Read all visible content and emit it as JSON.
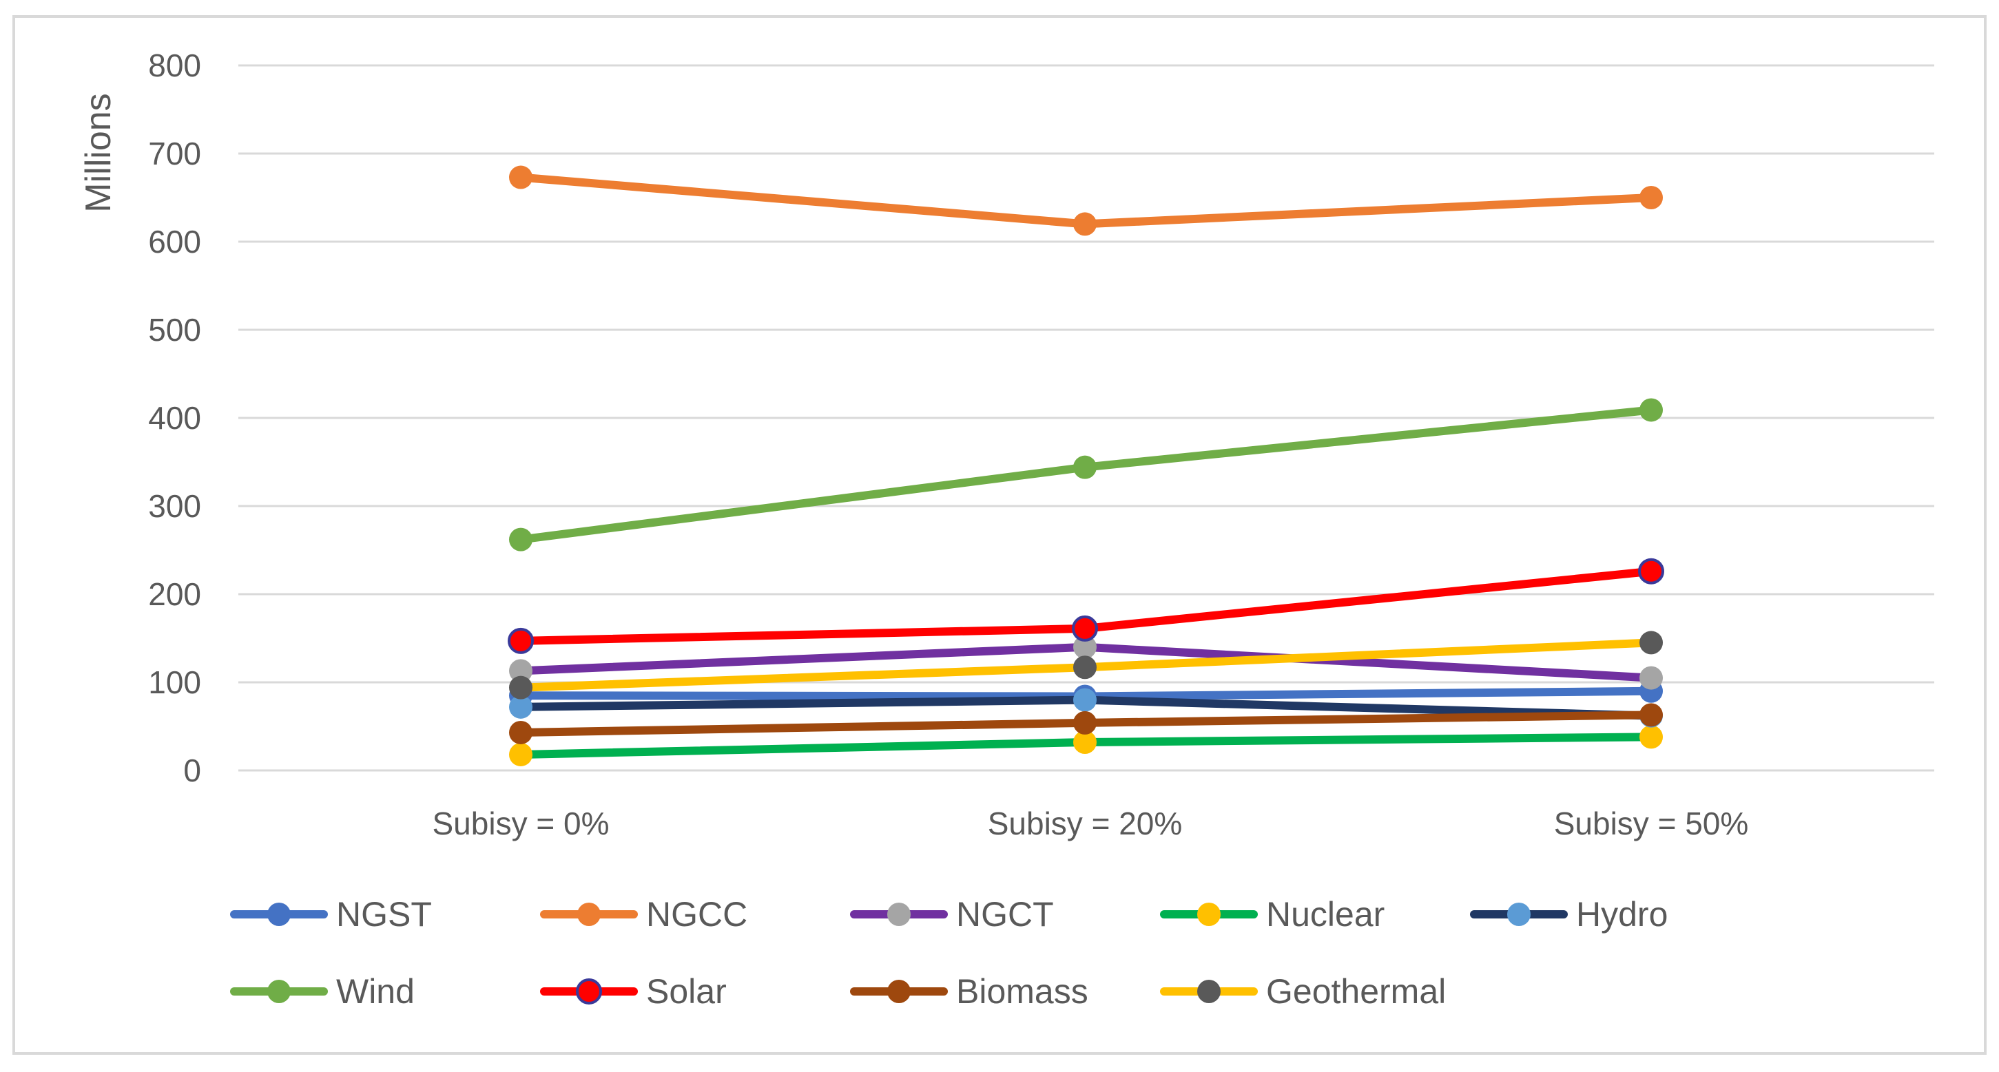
{
  "chart_data": {
    "type": "line",
    "title": "",
    "xlabel": "",
    "ylabel": "Millions",
    "ylim": [
      0,
      800
    ],
    "yticks": [
      0,
      100,
      200,
      300,
      400,
      500,
      600,
      700,
      800
    ],
    "grid": true,
    "legend_position": "bottom",
    "categories": [
      "Subisy = 0%",
      "Subisy = 20%",
      "Subisy = 50%"
    ],
    "series": [
      {
        "name": "NGST",
        "values": [
          85,
          84,
          90
        ],
        "line_color": "#4472C4",
        "marker_color": "#4472C4"
      },
      {
        "name": "NGCC",
        "values": [
          673,
          620,
          650
        ],
        "line_color": "#ED7D31",
        "marker_color": "#ED7D31"
      },
      {
        "name": "NGCT",
        "values": [
          113,
          140,
          105
        ],
        "line_color": "#7030A0",
        "marker_color": "#A5A5A5"
      },
      {
        "name": "Nuclear",
        "values": [
          18,
          32,
          38
        ],
        "line_color": "#00B050",
        "marker_color": "#FFC000"
      },
      {
        "name": "Hydro",
        "values": [
          72,
          80,
          62
        ],
        "line_color": "#203864",
        "marker_color": "#5B9BD5"
      },
      {
        "name": "Wind",
        "values": [
          262,
          344,
          409
        ],
        "line_color": "#70AD47",
        "marker_color": "#70AD47"
      },
      {
        "name": "Solar",
        "values": [
          147,
          161,
          226
        ],
        "line_color": "#FF0000",
        "marker_color": "#FF0000"
      },
      {
        "name": "Biomass",
        "values": [
          43,
          54,
          63
        ],
        "line_color": "#9E480E",
        "marker_color": "#9E480E"
      },
      {
        "name": "Geothermal",
        "values": [
          94,
          117,
          145
        ],
        "line_color": "#FFC000",
        "marker_color": "#595959"
      }
    ]
  }
}
